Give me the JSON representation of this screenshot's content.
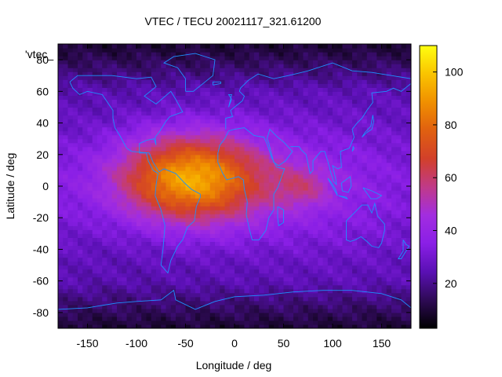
{
  "chart_data": {
    "type": "heatmap",
    "title": "VTEC / TECU 20021117_321.61200",
    "xlabel": "Longitude / deg",
    "ylabel": "Latitude / deg",
    "key_label": "'vtec_",
    "xlim": [
      -180,
      180
    ],
    "ylim": [
      -90,
      90
    ],
    "x_ticks": [
      -150,
      -100,
      -50,
      0,
      50,
      100,
      150
    ],
    "y_ticks": [
      -80,
      -60,
      -40,
      -20,
      0,
      20,
      40,
      60,
      80
    ],
    "colorbar": {
      "range": [
        3,
        110
      ],
      "ticks": [
        20,
        40,
        60,
        80,
        100
      ],
      "palette": [
        "#000000",
        "#2e0a55",
        "#5a10b4",
        "#8a1fe6",
        "#a22de0",
        "#c03a88",
        "#d2402a",
        "#e06010",
        "#f09000",
        "#fac400",
        "#ffff10"
      ]
    },
    "grid": {
      "lon_step": 5,
      "lat_step": 2.5,
      "model": "vtec = 10 + 12 hemispheric band(lat, sin lon) + 70 anomaly peak(lon -45, lat 5) + 15 Asia-Pacific lobe(lon 70, lat 0)",
      "peak_vtec": 95,
      "peak_lon": -45,
      "peak_lat": 5,
      "min_vtec": 5
    },
    "overlay": "coastlines"
  }
}
